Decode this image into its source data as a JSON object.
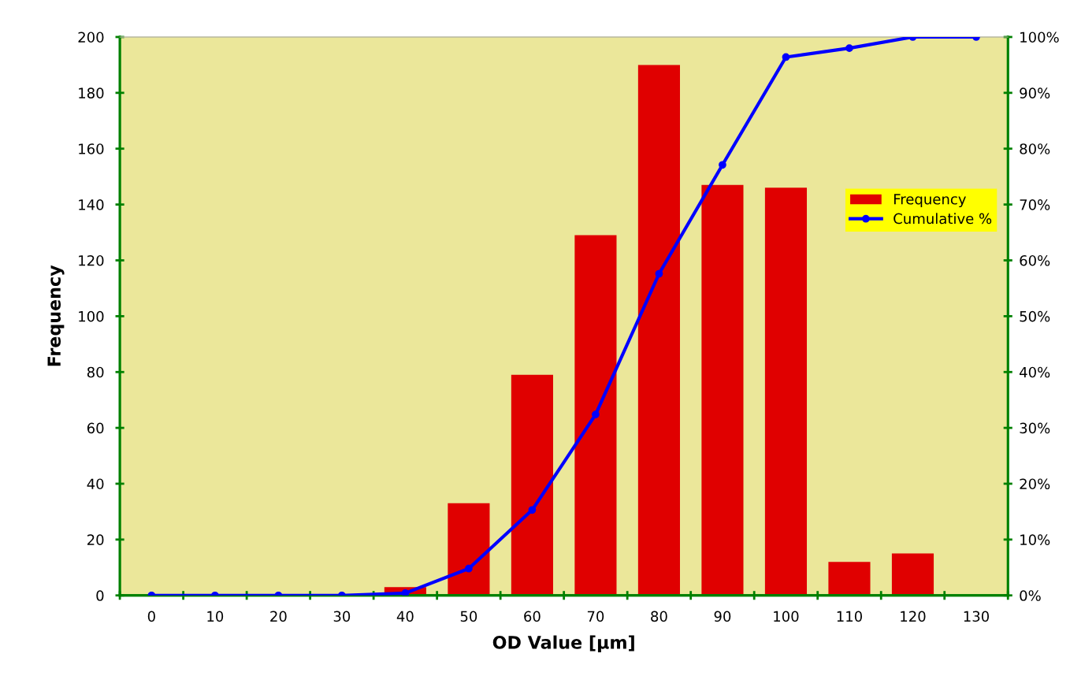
{
  "chart_data": {
    "type": "bar",
    "xlabel": "OD Value [µm]",
    "ylabel": "Frequency",
    "categories": [
      "0",
      "10",
      "20",
      "30",
      "40",
      "50",
      "60",
      "70",
      "80",
      "90",
      "100",
      "110",
      "120",
      "130"
    ],
    "series": [
      {
        "name": "Frequency",
        "color": "#e00000",
        "values": [
          0,
          0,
          0,
          0,
          3,
          33,
          79,
          129,
          190,
          147,
          146,
          12,
          15,
          0
        ]
      },
      {
        "name": "Cumulative %",
        "type": "line",
        "axis": "y2",
        "color": "#0000ff",
        "marker": "circle",
        "values": [
          0,
          0,
          0,
          0,
          0.4,
          4.8,
          15.3,
          32.4,
          57.6,
          77.1,
          96.4,
          98.0,
          100,
          100
        ]
      }
    ],
    "ylim": [
      0,
      200
    ],
    "yticks": [
      0,
      20,
      40,
      60,
      80,
      100,
      120,
      140,
      160,
      180,
      200
    ],
    "y2lim": [
      0,
      100
    ],
    "y2ticks": [
      {
        "value": 0,
        "label": "0%"
      },
      {
        "value": 10,
        "label": "10%"
      },
      {
        "value": 20,
        "label": "20%"
      },
      {
        "value": 30,
        "label": "30%"
      },
      {
        "value": 40,
        "label": "40%"
      },
      {
        "value": 50,
        "label": "50%"
      },
      {
        "value": 60,
        "label": "60%"
      },
      {
        "value": 70,
        "label": "70%"
      },
      {
        "value": 80,
        "label": "80%"
      },
      {
        "value": 90,
        "label": "90%"
      },
      {
        "value": 100,
        "label": "100%"
      }
    ],
    "grid": false,
    "legend": "right"
  }
}
